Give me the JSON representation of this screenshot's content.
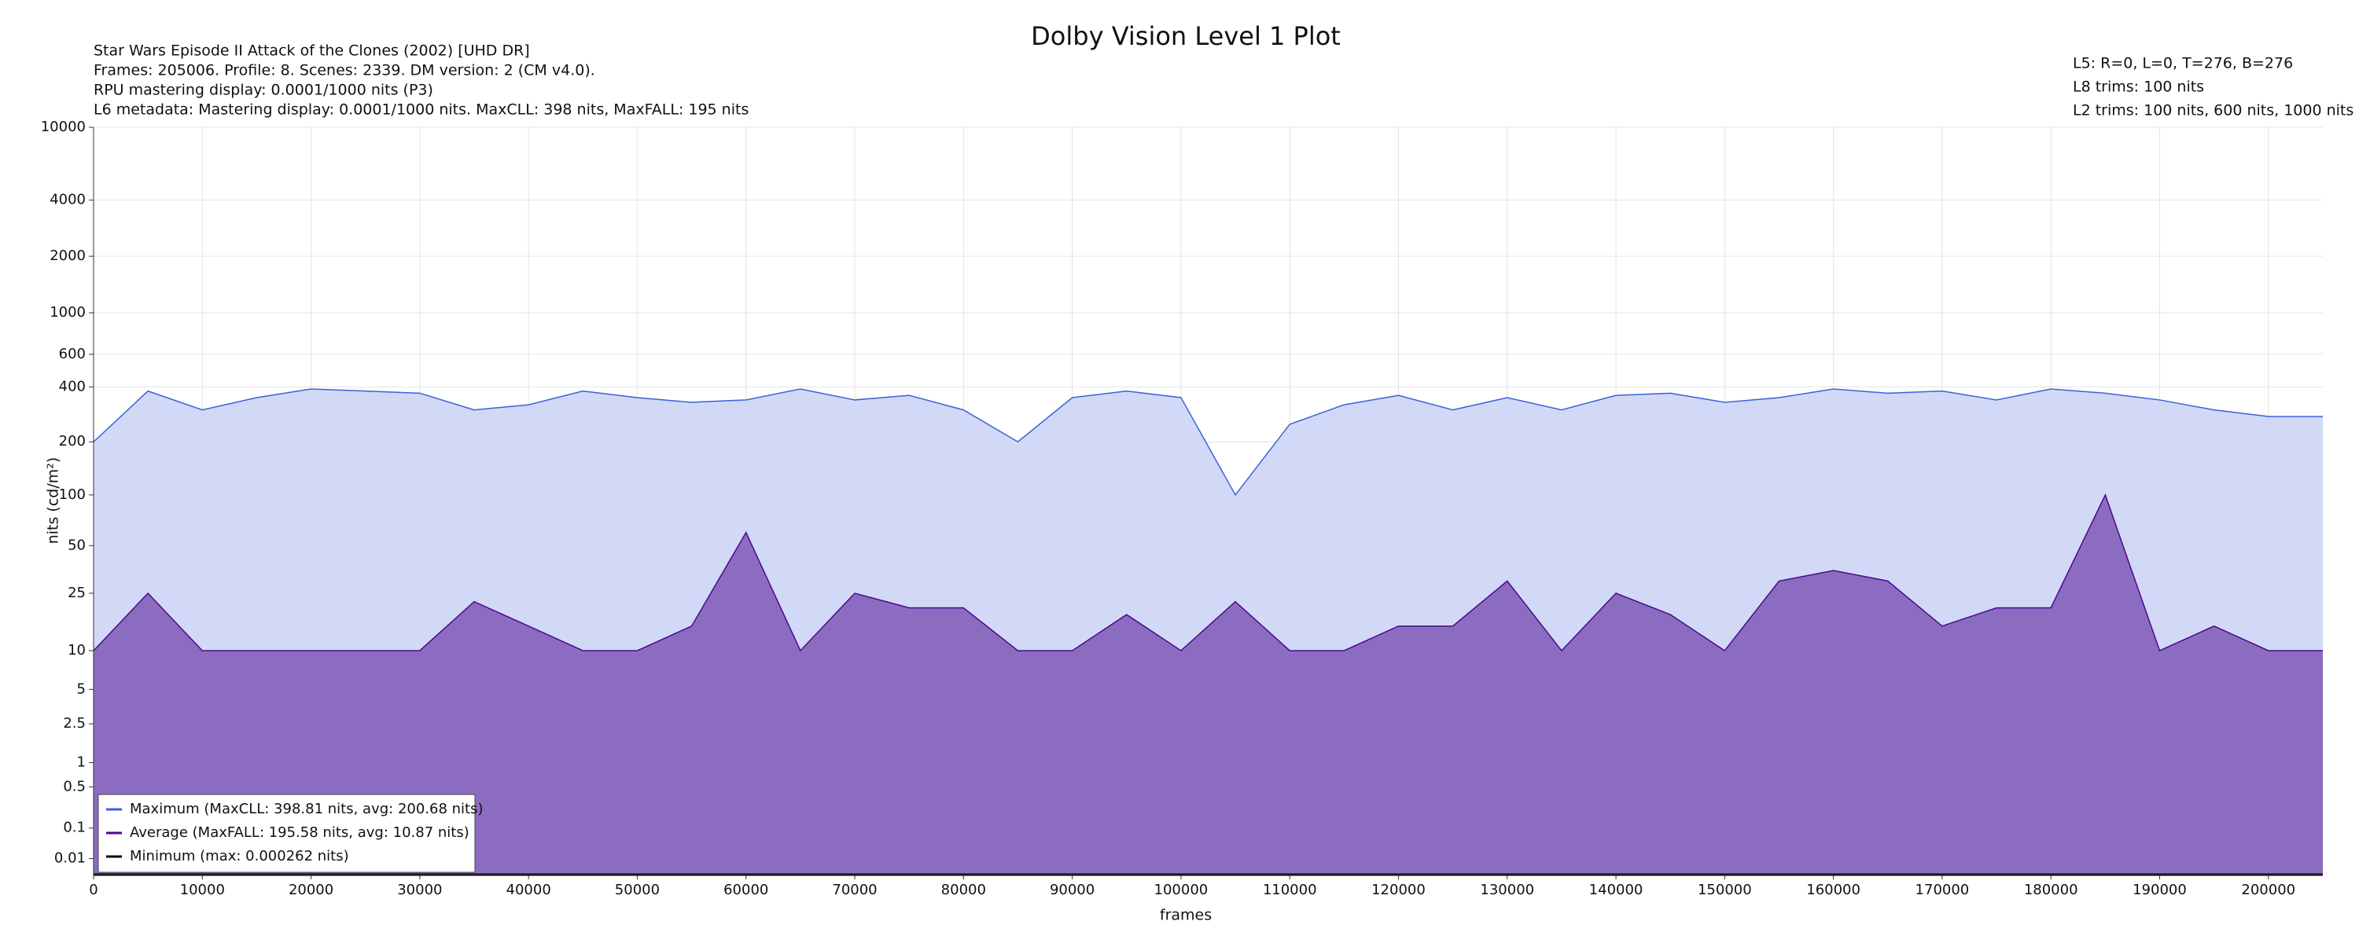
{
  "chart_data": {
    "type": "line",
    "title": "Dolby Vision Level 1 Plot",
    "info_left": [
      "Star Wars Episode II Attack of the Clones (2002) [UHD DR]",
      "Frames: 205006. Profile: 8. Scenes: 2339. DM version: 2 (CM v4.0).",
      "RPU mastering display: 0.0001/1000 nits  (P3)",
      "L6 metadata: Mastering display: 0.0001/1000 nits. MaxCLL: 398 nits, MaxFALL: 195 nits"
    ],
    "info_right": [
      "L5: R=0, L=0, T=276, B=276",
      "L8 trims: 100 nits",
      "L2 trims: 100 nits, 600 nits, 1000 nits"
    ],
    "x_label": "frames",
    "y_label": "nits (cd/m²)",
    "y_scale": "pq",
    "grid": true,
    "legend": "lower left",
    "xlim": [
      0,
      205006
    ],
    "xticks": [
      0,
      10000,
      20000,
      30000,
      40000,
      50000,
      60000,
      70000,
      80000,
      90000,
      100000,
      110000,
      120000,
      130000,
      140000,
      150000,
      160000,
      170000,
      180000,
      190000,
      200000
    ],
    "ylim": [
      0,
      10000
    ],
    "yticks": [
      0.01,
      0.1,
      0.5,
      1,
      2.5,
      5,
      10,
      25,
      50,
      100,
      200,
      400,
      600,
      1000,
      2000,
      4000,
      10000
    ],
    "x": [
      0,
      5000,
      10000,
      15000,
      20000,
      25000,
      30000,
      35000,
      40000,
      45000,
      50000,
      55000,
      60000,
      65000,
      70000,
      75000,
      80000,
      85000,
      90000,
      95000,
      100000,
      105000,
      110000,
      115000,
      120000,
      125000,
      130000,
      135000,
      140000,
      145000,
      150000,
      155000,
      160000,
      165000,
      170000,
      175000,
      180000,
      185000,
      190000,
      195000,
      200000,
      205006
    ],
    "series": [
      {
        "name": "Maximum (MaxCLL: 398.81 nits, avg: 200.68 nits)",
        "color": "#3a62d8",
        "fill": "#d1d9f6",
        "values": [
          200,
          380,
          300,
          350,
          390,
          380,
          370,
          300,
          320,
          380,
          350,
          330,
          340,
          390,
          340,
          360,
          300,
          200,
          350,
          380,
          350,
          100,
          250,
          320,
          360,
          300,
          350,
          300,
          360,
          370,
          330,
          350,
          390,
          370,
          380,
          340,
          390,
          370,
          340,
          300,
          276,
          276
        ]
      },
      {
        "name": "Average (MaxFALL: 195.58 nits, avg: 10.87 nits)",
        "color": "#4b0a8c",
        "fill": "#8c6cc0",
        "values": [
          10,
          25,
          10,
          10,
          10,
          10,
          10,
          22,
          15,
          10,
          10,
          15,
          60,
          10,
          25,
          20,
          20,
          10,
          10,
          18,
          10,
          22,
          10,
          10,
          15,
          15,
          30,
          10,
          25,
          18,
          10,
          30,
          35,
          30,
          15,
          20,
          20,
          100,
          10,
          15,
          10,
          10
        ]
      },
      {
        "name": "Minimum (max: 0.000262 nits)",
        "color": "#000000",
        "values": [
          0,
          0,
          0,
          0,
          0,
          0,
          0,
          0,
          0,
          0,
          0,
          0,
          0,
          0,
          0,
          0,
          0,
          0,
          0,
          0,
          0,
          0,
          0,
          0,
          0,
          0,
          0,
          0,
          0,
          0,
          0,
          0,
          0,
          0,
          0,
          0,
          0,
          0,
          0,
          0,
          0,
          0
        ]
      }
    ]
  }
}
